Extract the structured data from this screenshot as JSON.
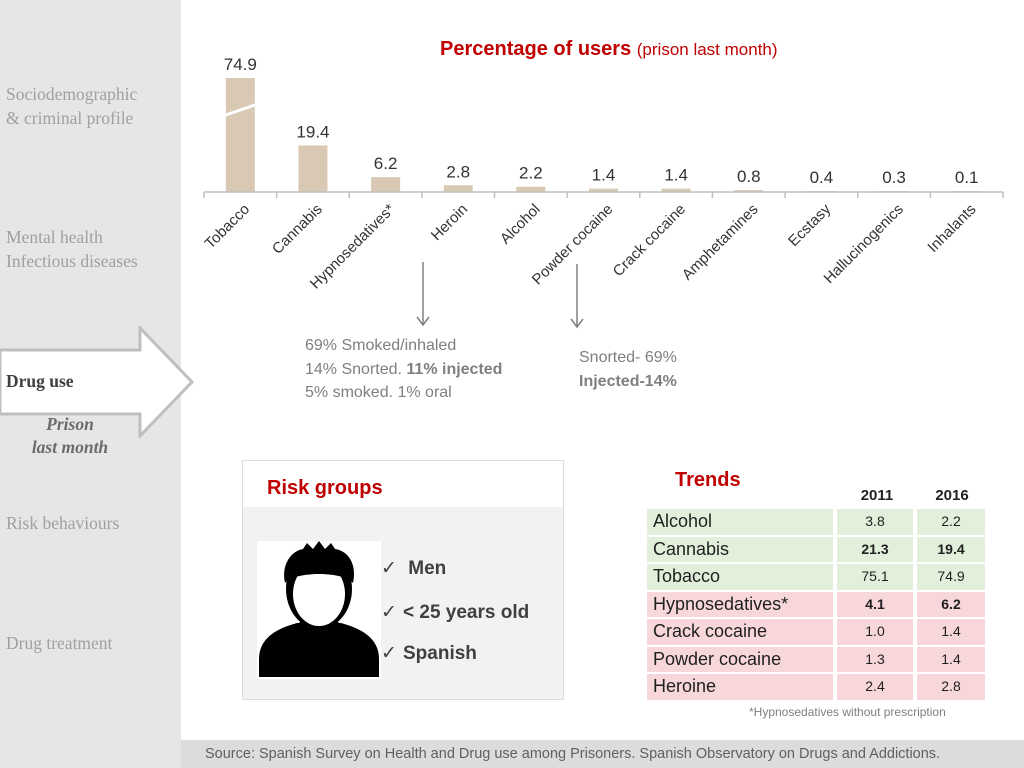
{
  "nav": {
    "items": [
      {
        "label": "Sociodemographic\n& criminal profile"
      },
      {
        "label": "Mental health\nInfectious diseases"
      },
      {
        "label": "Drug use"
      },
      {
        "label": "Risk behaviours"
      },
      {
        "label": "Drug treatment"
      }
    ],
    "active_sub": "Prison\nlast month",
    "colors": {
      "sidebar_bg": "#e6e6e6",
      "inactive_text": "#a0a0a0",
      "active_text": "#404040"
    }
  },
  "chart": {
    "title_main": "Percentage of users",
    "title_sub": "(prison last month)"
  },
  "chart_data": {
    "type": "bar",
    "title": "Percentage of users (prison last month)",
    "categories": [
      "Tobacco",
      "Cannabis",
      "Hypnosedatives*",
      "Heroin",
      "Alcohol",
      "Powder cocaine",
      "Crack cocaine",
      "Amphetamines",
      "Ecstasy",
      "Hallucinogenics",
      "Inhalants"
    ],
    "values": [
      74.9,
      19.4,
      6.2,
      2.8,
      2.2,
      1.4,
      1.4,
      0.8,
      0.4,
      0.3,
      0.1
    ],
    "value_labels": [
      "74.9",
      "19.4",
      "6.2",
      "2.8",
      "2.2",
      "1.4",
      "1.4",
      "0.8",
      "0.4",
      "0.3",
      "0.1"
    ],
    "axis_break": true,
    "grid": false,
    "bar_color": "#d9c9b4"
  },
  "annotations": {
    "heroin": {
      "line1": "69% Smoked/inhaled",
      "line2a": "14% Snorted. ",
      "line2b": "11% injected",
      "line3": "5% smoked. 1% oral"
    },
    "cocaine": {
      "line1": "Snorted- 69%",
      "line2": "Injected-14%"
    }
  },
  "risk_groups": {
    "title": "Risk groups",
    "items": [
      "Men",
      "< 25 years old",
      "Spanish"
    ],
    "check": "✓"
  },
  "trends": {
    "title": "Trends",
    "years": [
      "2011",
      "2016"
    ],
    "rows": [
      {
        "name": "Alcohol",
        "v2011": "3.8",
        "v2016": "2.2",
        "trend": "down"
      },
      {
        "name": "Cannabis",
        "v2011": "21.3",
        "v2016": "19.4",
        "trend": "down"
      },
      {
        "name": "Tobacco",
        "v2011": "75.1",
        "v2016": "74.9",
        "trend": "down"
      },
      {
        "name": "Hypnosedatives*",
        "v2011": "4.1",
        "v2016": "6.2",
        "trend": "up"
      },
      {
        "name": "Crack cocaine",
        "v2011": "1.0",
        "v2016": "1.4",
        "trend": "up"
      },
      {
        "name": "Powder cocaine",
        "v2011": "1.3",
        "v2016": "1.4",
        "trend": "up"
      },
      {
        "name": "Heroine",
        "v2011": "2.4",
        "v2016": "2.8",
        "trend": "up"
      }
    ],
    "colors": {
      "down": "#e2efda",
      "up": "#f8d7da"
    },
    "footnote": "*Hypnosedatives without prescription"
  },
  "source": "Source: Spanish Survey on Health  and Drug use among Prisoners. Spanish Observatory on Drugs and Addictions.",
  "colors": {
    "accent": "#c00000",
    "muted": "#7f7f7f"
  }
}
